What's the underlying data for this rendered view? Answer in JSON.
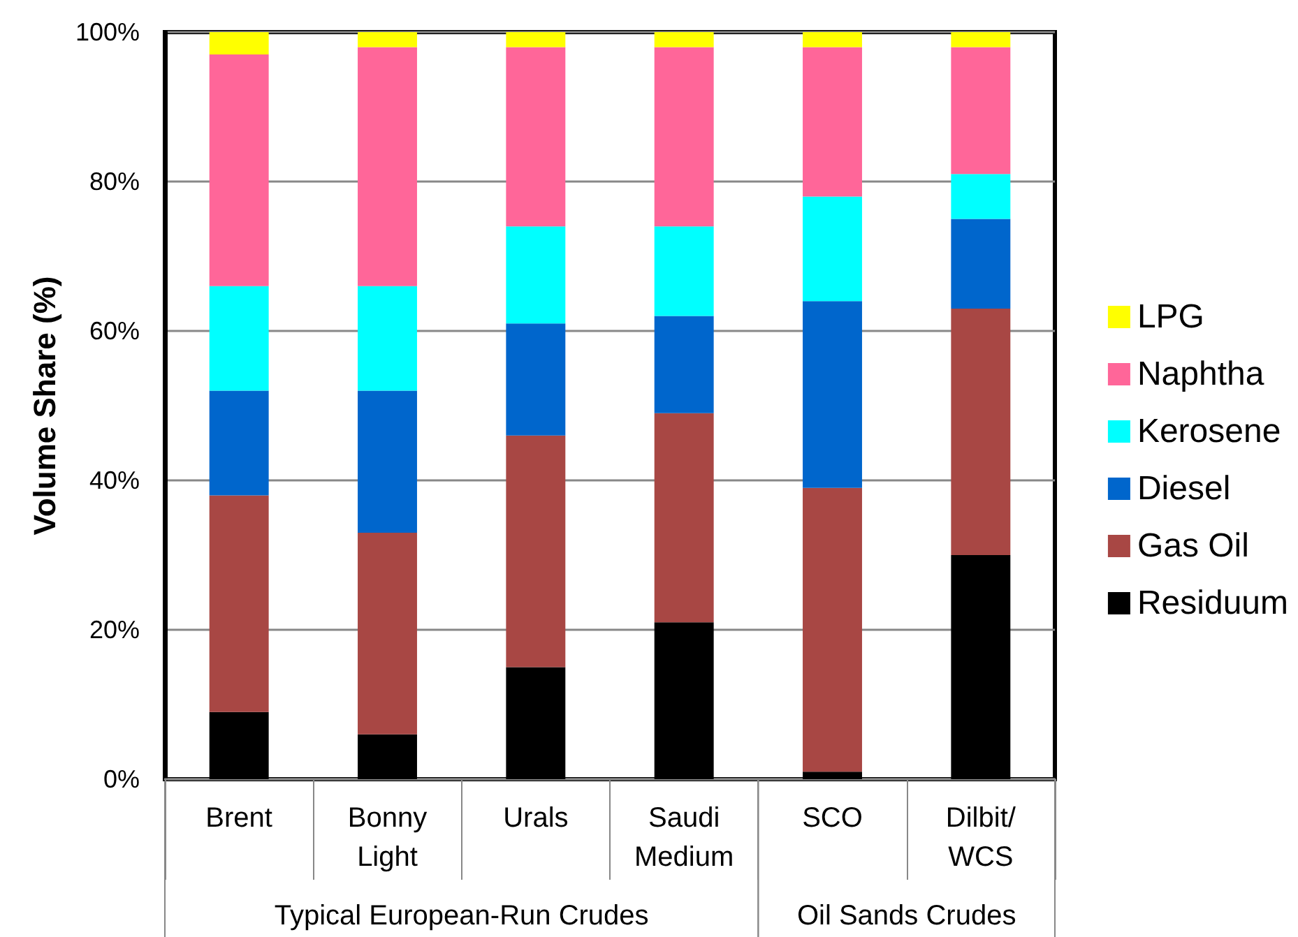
{
  "chart_data": {
    "type": "bar",
    "stacked": true,
    "categories": [
      "Brent",
      "Bonny Light",
      "Urals",
      "Saudi Medium",
      "SCO",
      "Dilbit/WCS"
    ],
    "series": [
      {
        "name": "Residuum",
        "color": "#000000",
        "values": [
          9,
          6,
          15,
          21,
          1,
          30
        ]
      },
      {
        "name": "Gas Oil",
        "color": "#a84744",
        "values": [
          29,
          27,
          31,
          28,
          38,
          33
        ]
      },
      {
        "name": "Diesel",
        "color": "#0066cc",
        "values": [
          14,
          19,
          15,
          13,
          25,
          12
        ]
      },
      {
        "name": "Kerosene",
        "color": "#00ffff",
        "values": [
          14,
          14,
          13,
          12,
          14,
          6
        ]
      },
      {
        "name": "Naphtha",
        "color": "#ff6699",
        "values": [
          31,
          32,
          24,
          24,
          20,
          17
        ]
      },
      {
        "name": "LPG",
        "color": "#ffff00",
        "values": [
          3,
          2,
          2,
          2,
          2,
          2
        ]
      }
    ],
    "ylabel": "Volume Share (%)",
    "ylim": [
      0,
      100
    ],
    "yticks": [
      {
        "value": 0,
        "label": "0%"
      },
      {
        "value": 20,
        "label": "20%"
      },
      {
        "value": 40,
        "label": "40%"
      },
      {
        "value": 60,
        "label": "60%"
      },
      {
        "value": 80,
        "label": "80%"
      },
      {
        "value": 100,
        "label": "100%"
      }
    ],
    "annotations": [
      "Typical European-Run Crudes",
      "Oil Sands Crudes"
    ],
    "grid": "y",
    "legend": "right"
  }
}
